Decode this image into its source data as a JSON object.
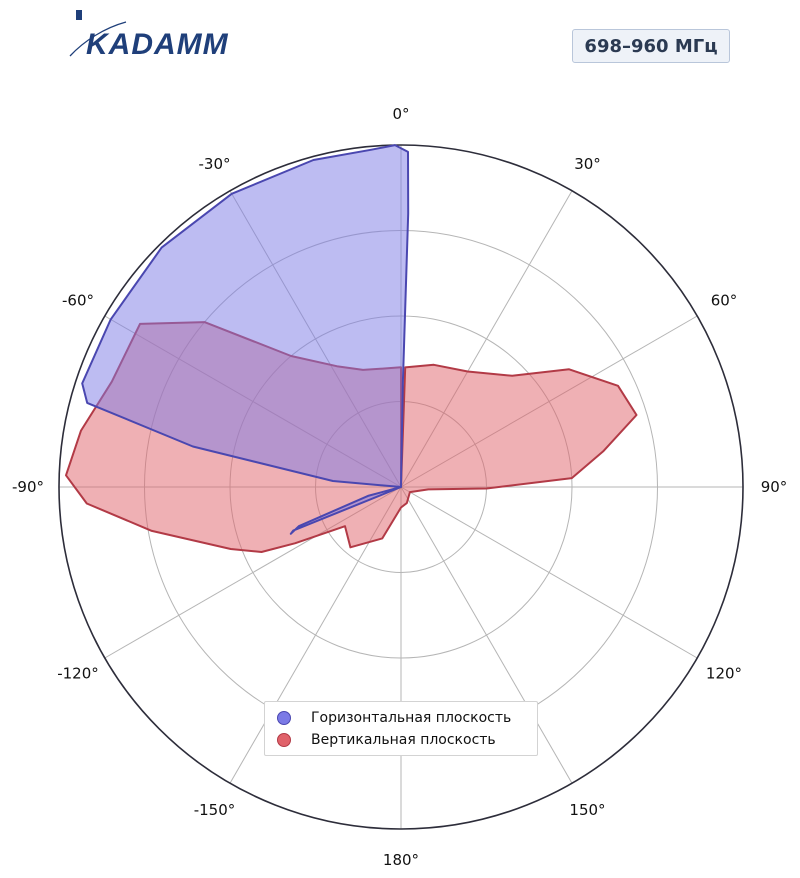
{
  "logo": {
    "text": "KADAMM"
  },
  "badge": {
    "text": "698–960 МГц"
  },
  "colors": {
    "horizontal_fill": "#7b7ae6",
    "horizontal_stroke": "#4a47b0",
    "vertical_fill": "#e0626a",
    "vertical_stroke": "#b23a46",
    "grid": "#b5b5b5",
    "outer_ring": "#2d2d3a"
  },
  "chart_data": {
    "type": "polar",
    "theta_direction": "clockwise",
    "theta_zero": "top",
    "theta_ticks": [
      {
        "angle": 0,
        "label": "0°"
      },
      {
        "angle": 30,
        "label": "30°"
      },
      {
        "angle": 60,
        "label": "60°"
      },
      {
        "angle": 90,
        "label": "90°"
      },
      {
        "angle": 120,
        "label": "120°"
      },
      {
        "angle": 150,
        "label": "150°"
      },
      {
        "angle": 180,
        "label": "180°"
      },
      {
        "angle": -150,
        "label": "-150°"
      },
      {
        "angle": -120,
        "label": "-120°"
      },
      {
        "angle": -90,
        "label": "-90°"
      },
      {
        "angle": -60,
        "label": "-60°"
      },
      {
        "angle": -30,
        "label": "-30°"
      }
    ],
    "r_range": [
      0,
      1
    ],
    "r_grid": [
      0.25,
      0.5,
      0.75,
      1.0
    ],
    "grid": true,
    "legend_position": "bottom-center",
    "series": [
      {
        "name": "Горизонтальная плоскость",
        "points": [
          {
            "theta": 0,
            "r": 0.0
          },
          {
            "theta": 1,
            "r": 0.3
          },
          {
            "theta": 1.5,
            "r": 0.8
          },
          {
            "theta": 1.2,
            "r": 0.98
          },
          {
            "theta": -1,
            "r": 1.0
          },
          {
            "theta": -5,
            "r": 0.99
          },
          {
            "theta": -15,
            "r": 0.99
          },
          {
            "theta": -30,
            "r": 0.99
          },
          {
            "theta": -45,
            "r": 0.99
          },
          {
            "theta": -60,
            "r": 0.98
          },
          {
            "theta": -72,
            "r": 0.98
          },
          {
            "theta": -75,
            "r": 0.95
          },
          {
            "theta": -79,
            "r": 0.62
          },
          {
            "theta": -85,
            "r": 0.2
          },
          {
            "theta": -90,
            "r": 0.0
          },
          {
            "theta": -112,
            "r": 0.34
          },
          {
            "theta": -113,
            "r": 0.35
          },
          {
            "theta": -111,
            "r": 0.32
          },
          {
            "theta": -105,
            "r": 0.1
          },
          {
            "theta": 0,
            "r": 0.0
          }
        ]
      },
      {
        "name": "Вертикальная плоскость",
        "points": [
          {
            "theta": 0,
            "r": 0.0
          },
          {
            "theta": 2,
            "r": 0.35
          },
          {
            "theta": 15,
            "r": 0.37
          },
          {
            "theta": 30,
            "r": 0.39
          },
          {
            "theta": 45,
            "r": 0.46
          },
          {
            "theta": 55,
            "r": 0.6
          },
          {
            "theta": 65,
            "r": 0.7
          },
          {
            "theta": 73,
            "r": 0.72
          },
          {
            "theta": 80,
            "r": 0.6
          },
          {
            "theta": 87,
            "r": 0.5
          },
          {
            "theta": 91,
            "r": 0.25
          },
          {
            "theta": 95,
            "r": 0.08
          },
          {
            "theta": 120,
            "r": 0.03
          },
          {
            "theta": 160,
            "r": 0.05
          },
          {
            "theta": 180,
            "r": 0.06
          },
          {
            "theta": -160,
            "r": 0.16
          },
          {
            "theta": -140,
            "r": 0.23
          },
          {
            "theta": -125,
            "r": 0.2
          },
          {
            "theta": -118,
            "r": 0.35
          },
          {
            "theta": -115,
            "r": 0.45
          },
          {
            "theta": -110,
            "r": 0.53
          },
          {
            "theta": -100,
            "r": 0.74
          },
          {
            "theta": -93,
            "r": 0.92
          },
          {
            "theta": -88,
            "r": 0.98
          },
          {
            "theta": -80,
            "r": 0.95
          },
          {
            "theta": -70,
            "r": 0.9
          },
          {
            "theta": -58,
            "r": 0.9
          },
          {
            "theta": -50,
            "r": 0.75
          },
          {
            "theta": -40,
            "r": 0.5
          },
          {
            "theta": -28,
            "r": 0.4
          },
          {
            "theta": -18,
            "r": 0.36
          },
          {
            "theta": -8,
            "r": 0.35
          },
          {
            "theta": 0,
            "r": 0.35
          },
          {
            "theta": 0,
            "r": 0.0
          }
        ]
      }
    ]
  }
}
